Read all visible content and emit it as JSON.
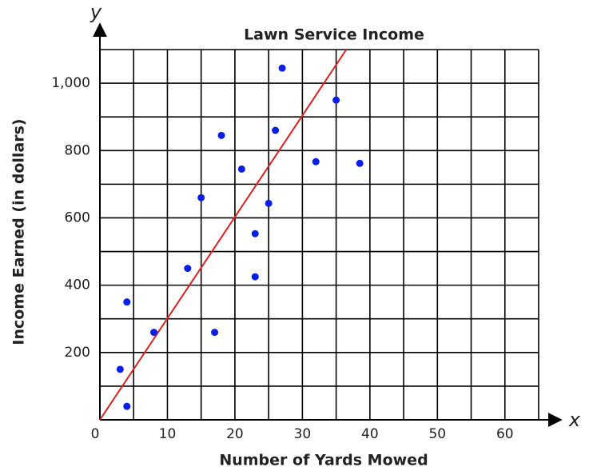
{
  "chart_data": {
    "type": "scatter",
    "title": "Lawn Service Income",
    "x_label": "Number of Yards Mowed",
    "y_label": "Income Earned (in dollars)",
    "x_axis_symbol": "x",
    "y_axis_symbol": "y",
    "x": [
      3,
      4,
      4,
      8,
      13,
      15,
      17,
      18,
      21,
      23,
      23,
      25,
      26,
      27,
      32,
      35,
      38.5
    ],
    "y": [
      150,
      350,
      40,
      260,
      450,
      660,
      260,
      845,
      745,
      553,
      425,
      643,
      860,
      1045,
      767,
      950,
      762
    ],
    "color": "#0a1fe6",
    "trend_line": {
      "x": [
        0,
        36.5
      ],
      "y": [
        0,
        1100
      ],
      "color": "#e02020"
    },
    "xlim": [
      0,
      65
    ],
    "ylim": [
      0,
      1100
    ],
    "xticks": [
      0,
      10,
      20,
      30,
      40,
      50,
      60
    ],
    "yticks": [
      200,
      400,
      600,
      800,
      {
        "value": 1000,
        "label": "1,000"
      }
    ],
    "xgrid": [
      0,
      5,
      10,
      15,
      20,
      25,
      30,
      35,
      40,
      45,
      50,
      55,
      60,
      65
    ],
    "ygrid": [
      0,
      100,
      200,
      300,
      400,
      500,
      600,
      700,
      800,
      900,
      1000,
      1100
    ],
    "grid": true
  }
}
